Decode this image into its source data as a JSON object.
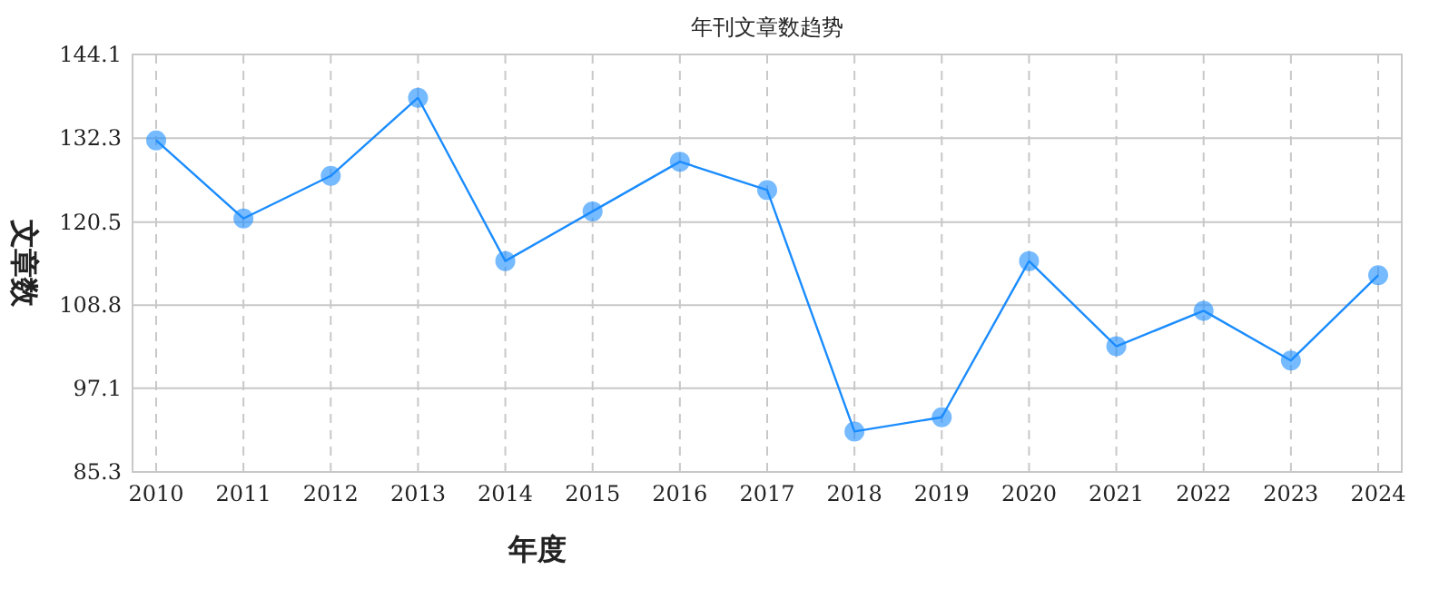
{
  "chart_data": {
    "type": "line",
    "title": "年刊文章数趋势",
    "xlabel": "年度",
    "ylabel": "文章数",
    "categories": [
      "2010",
      "2011",
      "2012",
      "2013",
      "2014",
      "2015",
      "2016",
      "2017",
      "2018",
      "2019",
      "2020",
      "2021",
      "2022",
      "2023",
      "2024"
    ],
    "series": [
      {
        "color": "#1a8cff",
        "values": [
          132,
          121,
          127,
          138,
          115,
          122,
          129,
          125,
          91,
          93,
          115,
          103,
          108,
          101,
          113
        ]
      }
    ],
    "ylim": [
      85.3,
      144.1
    ],
    "yticks": [
      85.3,
      97.1,
      108.8,
      120.5,
      132.3,
      144.1
    ],
    "grid": true,
    "marker": "circle",
    "line_style": "solid"
  }
}
